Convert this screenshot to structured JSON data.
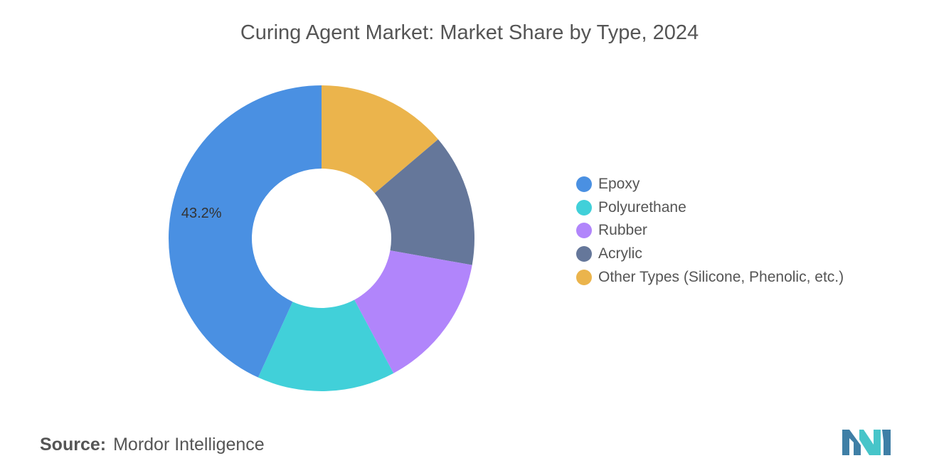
{
  "title": "Curing Agent Market: Market Share by Type, 2024",
  "chart_data": {
    "type": "pie",
    "variant": "donut",
    "title": "Curing Agent Market: Market Share by Type, 2024",
    "categories": [
      "Epoxy",
      "Polyurethane",
      "Rubber",
      "Acrylic",
      "Other Types (Silicone, Phenolic, etc.)"
    ],
    "values": [
      43.2,
      14.6,
      14.4,
      14.0,
      13.8
    ],
    "data_labels": [
      "43.2%"
    ],
    "colors": [
      "#4A90E2",
      "#41D0D9",
      "#B185FB",
      "#65779A",
      "#EBB44C"
    ],
    "legend_position": "right",
    "slice_order": "clockwise from 12 o'clock: Other Types, Acrylic, Rubber, Polyurethane, Epoxy"
  },
  "source": {
    "label": "Source:",
    "text": "Mordor Intelligence"
  },
  "logo": {
    "icon": "mordor-intelligence-logo-icon",
    "colors": [
      "#3F7FA6",
      "#47C5C9"
    ]
  }
}
